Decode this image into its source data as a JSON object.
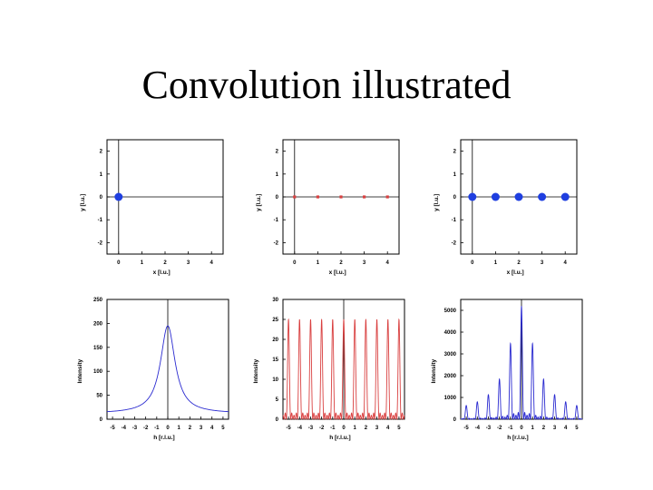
{
  "slide": {
    "title": "Convolution illustrated"
  },
  "chart_data": [
    {
      "type": "scatter",
      "panel": "top-left",
      "xlabel": "x [l.u.]",
      "ylabel": "y [l.u.]",
      "xlim": [
        -0.5,
        4.5
      ],
      "ylim": [
        -2.5,
        2.5
      ],
      "xticks": [
        "0",
        "1",
        "2",
        "3",
        "4"
      ],
      "yticks": [
        "2",
        "1",
        "0",
        "-1",
        "-2"
      ],
      "color": "#1f3fe0",
      "marker": "large-circle",
      "x": [
        0
      ],
      "y": [
        0
      ]
    },
    {
      "type": "scatter",
      "panel": "top-middle",
      "xlabel": "x [l.u.]",
      "ylabel": "y [l.u.]",
      "xlim": [
        -0.5,
        4.5
      ],
      "ylim": [
        -2.5,
        2.5
      ],
      "xticks": [
        "0",
        "1",
        "2",
        "3",
        "4"
      ],
      "yticks": [
        "2",
        "1",
        "0",
        "-1",
        "-2"
      ],
      "color": "#d94040",
      "marker": "small-square",
      "x": [
        0,
        1,
        2,
        3,
        4
      ],
      "y": [
        0,
        0,
        0,
        0,
        0
      ]
    },
    {
      "type": "scatter",
      "panel": "top-right",
      "xlabel": "x [l.u.]",
      "ylabel": "y [l.u.]",
      "xlim": [
        -0.5,
        4.5
      ],
      "ylim": [
        -2.5,
        2.5
      ],
      "xticks": [
        "0",
        "1",
        "2",
        "3",
        "4"
      ],
      "yticks": [
        "2",
        "1",
        "0",
        "-1",
        "-2"
      ],
      "color": "#1f3fe0",
      "marker": "large-circle",
      "x": [
        0,
        1,
        2,
        3,
        4
      ],
      "y": [
        0,
        0,
        0,
        0,
        0
      ]
    },
    {
      "type": "line",
      "panel": "bottom-left",
      "xlabel": "h [r.l.u.]",
      "ylabel": "Intensity",
      "xlim": [
        -5.5,
        5.5
      ],
      "ylim": [
        0,
        250
      ],
      "xticks": [
        "-5",
        "-4",
        "-3",
        "-2",
        "-1",
        "0",
        "1",
        "2",
        "3",
        "4",
        "5"
      ],
      "yticks": [
        "250",
        "200",
        "150",
        "100",
        "50",
        "0"
      ],
      "color": "#2a2ad0",
      "profile": "lorentzian",
      "peak_center": 0,
      "peak_height": 195,
      "half_width": 0.8,
      "background": 12
    },
    {
      "type": "line",
      "panel": "bottom-middle",
      "xlabel": "h [r.l.u.]",
      "ylabel": "Intensity",
      "xlim": [
        -5.5,
        5.5
      ],
      "ylim": [
        0,
        30
      ],
      "xticks": [
        "-5",
        "-4",
        "-3",
        "-2",
        "-1",
        "0",
        "1",
        "2",
        "3",
        "4",
        "5"
      ],
      "yticks": [
        "30",
        "25",
        "20",
        "15",
        "10",
        "5",
        "0"
      ],
      "color": "#d94040",
      "profile": "interference",
      "peak_height": 25,
      "peaks_per_unit": 1,
      "fringe_count": 5
    },
    {
      "type": "line",
      "panel": "bottom-right",
      "xlabel": "h [r.l.u.]",
      "ylabel": "Intensity",
      "xlim": [
        -5.5,
        5.5
      ],
      "ylim": [
        0,
        5500
      ],
      "xticks": [
        "-5",
        "-4",
        "-3",
        "-2",
        "-1",
        "0",
        "1",
        "2",
        "3",
        "4",
        "5"
      ],
      "yticks": [
        "5000",
        "4000",
        "3000",
        "2000",
        "1000",
        "0"
      ],
      "color": "#2a2ad0",
      "profile": "interference-times-lorentzian",
      "peak_height": 4900,
      "half_width": 0.8,
      "fringe_count": 5
    }
  ]
}
